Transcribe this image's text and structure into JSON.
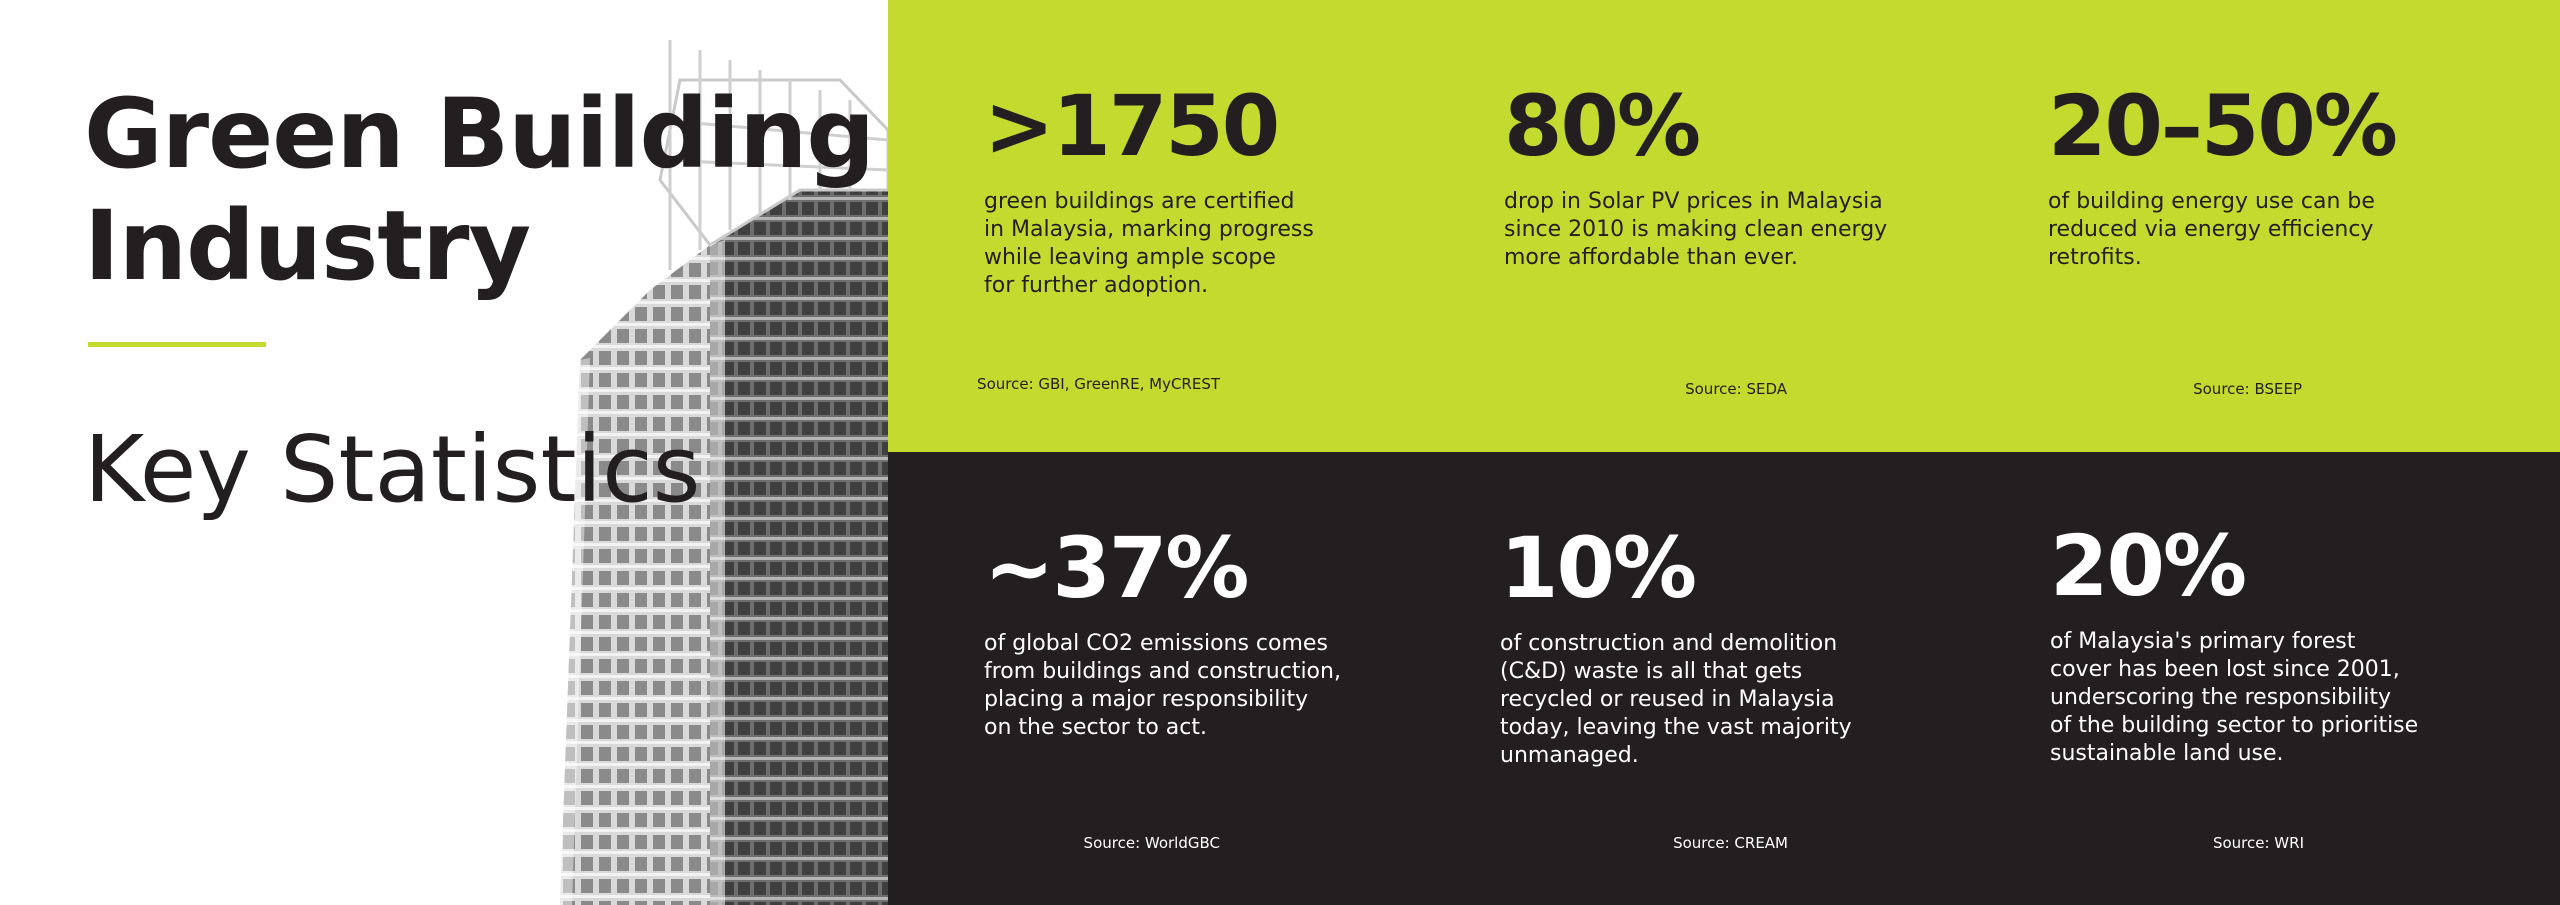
{
  "page": {
    "title": "Green Building\nIndustry",
    "subtitle": "Key Statistics"
  },
  "colors": {
    "accent_green": "#c4da2f",
    "dark": "#231f20",
    "white": "#ffffff"
  },
  "stats_top": [
    {
      "value": ">1750",
      "description": "green buildings are certified\nin Malaysia, marking progress\nwhile leaving ample scope\nfor further adoption.",
      "source": "Source: GBI, GreenRE, MyCREST"
    },
    {
      "value": "80%",
      "description": "drop in Solar PV prices in Malaysia\nsince 2010 is making clean energy\nmore affordable than ever.",
      "source": "Source: SEDA"
    },
    {
      "value": "20–50%",
      "description": "of building energy use can be\nreduced via energy efficiency\nretrofits.",
      "source": "Source: BSEEP"
    }
  ],
  "stats_bottom": [
    {
      "value": "~37%",
      "description": "of global CO2 emissions comes\nfrom buildings and construction,\nplacing a major responsibility\non the sector to act.",
      "source": "Source: WorldGBC"
    },
    {
      "value": "10%",
      "description": "of construction and demolition\n(C&D) waste is all that gets\nrecycled or reused in Malaysia\ntoday, leaving the vast majority\nunmanaged.",
      "source": "Source: CREAM"
    },
    {
      "value": "20%",
      "description": "of Malaysia's primary forest\ncover has been lost since 2001,\nunderscoring the responsibility\nof the building sector to prioritise\nsustainable land use.",
      "source": "Source: WRI"
    }
  ]
}
